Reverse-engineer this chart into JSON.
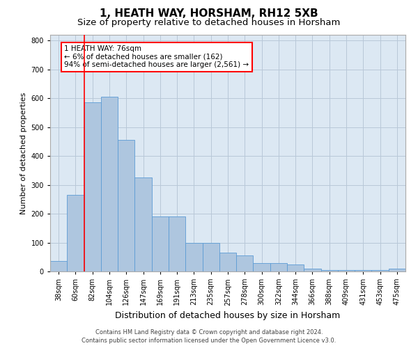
{
  "title": "1, HEATH WAY, HORSHAM, RH12 5XB",
  "subtitle": "Size of property relative to detached houses in Horsham",
  "xlabel": "Distribution of detached houses by size in Horsham",
  "ylabel": "Number of detached properties",
  "categories": [
    "38sqm",
    "60sqm",
    "82sqm",
    "104sqm",
    "126sqm",
    "147sqm",
    "169sqm",
    "191sqm",
    "213sqm",
    "235sqm",
    "257sqm",
    "278sqm",
    "300sqm",
    "322sqm",
    "344sqm",
    "366sqm",
    "388sqm",
    "409sqm",
    "431sqm",
    "453sqm",
    "475sqm"
  ],
  "values": [
    35,
    265,
    585,
    605,
    455,
    325,
    190,
    190,
    100,
    100,
    65,
    55,
    30,
    30,
    25,
    10,
    5,
    5,
    5,
    5,
    10
  ],
  "bar_color": "#aec6df",
  "bar_edge_color": "#5b9bd5",
  "bar_width": 1.0,
  "ylim": [
    0,
    820
  ],
  "yticks": [
    0,
    100,
    200,
    300,
    400,
    500,
    600,
    700,
    800
  ],
  "red_line_x": 1.5,
  "annotation_text": "1 HEATH WAY: 76sqm\n← 6% of detached houses are smaller (162)\n94% of semi-detached houses are larger (2,561) →",
  "footer_line1": "Contains HM Land Registry data © Crown copyright and database right 2024.",
  "footer_line2": "Contains public sector information licensed under the Open Government Licence v3.0.",
  "background_color": "#ffffff",
  "grid_color": "#b8c8d8",
  "title_fontsize": 11,
  "subtitle_fontsize": 9.5,
  "ylabel_fontsize": 8,
  "xlabel_fontsize": 9,
  "tick_fontsize": 7,
  "footer_fontsize": 6,
  "annot_fontsize": 7.5
}
